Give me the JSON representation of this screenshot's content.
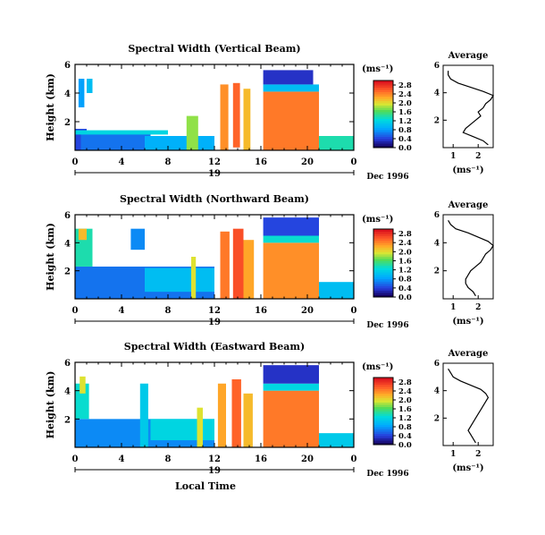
{
  "chart_data": [
    {
      "type": "heatmap",
      "title": "Spectral Width (Vertical Beam)",
      "ylabel": "Height (km)",
      "x": [
        0,
        4,
        8,
        12,
        16,
        20,
        24
      ],
      "x_ticklabels": [
        "0",
        "4",
        "8",
        "12",
        "16",
        "20",
        "0"
      ],
      "ylim": [
        0,
        6
      ],
      "y_ticklabels": [
        "2",
        "4",
        "6"
      ],
      "date_day": "19",
      "date_label": "Dec 1996",
      "colorbar": {
        "unit": "(ms⁻¹)",
        "ticks": [
          "0.0",
          "0.4",
          "0.8",
          "1.2",
          "1.6",
          "2.0",
          "2.4",
          "2.8"
        ],
        "range": [
          0,
          3.0
        ]
      },
      "patches": [
        {
          "x": [
            0.0,
            1.0
          ],
          "y": [
            0.0,
            1.5
          ],
          "value": 0.4
        },
        {
          "x": [
            0.5,
            6.5
          ],
          "y": [
            0.0,
            1.2
          ],
          "value": 0.6
        },
        {
          "x": [
            6.0,
            12.0
          ],
          "y": [
            0.0,
            1.0
          ],
          "value": 0.9
        },
        {
          "x": [
            0.0,
            8.0
          ],
          "y": [
            1.1,
            1.4
          ],
          "value": 1.2
        },
        {
          "x": [
            9.6,
            10.6
          ],
          "y": [
            0.0,
            2.4
          ],
          "value": 1.8
        },
        {
          "x": [
            12.5,
            13.2
          ],
          "y": [
            0.0,
            4.6
          ],
          "value": 2.4
        },
        {
          "x": [
            13.6,
            14.2
          ],
          "y": [
            0.2,
            4.7
          ],
          "value": 2.6
        },
        {
          "x": [
            14.5,
            15.1
          ],
          "y": [
            0.0,
            4.3
          ],
          "value": 2.2
        },
        {
          "x": [
            16.2,
            21.0
          ],
          "y": [
            0.0,
            4.1
          ],
          "value": 2.5
        },
        {
          "x": [
            16.2,
            21.0
          ],
          "y": [
            4.1,
            4.6
          ],
          "value": 1.0
        },
        {
          "x": [
            16.2,
            20.5
          ],
          "y": [
            4.6,
            5.6
          ],
          "value": 0.3
        },
        {
          "x": [
            21.0,
            24.0
          ],
          "y": [
            0.0,
            1.0
          ],
          "value": 1.4
        },
        {
          "x": [
            0.3,
            0.8
          ],
          "y": [
            3.0,
            5.0
          ],
          "value": 0.8
        },
        {
          "x": [
            1.0,
            1.5
          ],
          "y": [
            4.0,
            5.0
          ],
          "value": 1.0
        }
      ],
      "average": {
        "title": "Average",
        "xlabel": "(ms⁻¹)",
        "xlim": [
          0.6,
          2.6
        ],
        "x_ticks": [
          1,
          2
        ],
        "ylim": [
          0,
          6
        ],
        "y_ticks": [
          2,
          4,
          6
        ],
        "profile_heights": [
          0.2,
          0.5,
          0.8,
          1.1,
          1.4,
          1.7,
          2.0,
          2.3,
          2.6,
          2.9,
          3.2,
          3.5,
          3.8,
          4.1,
          4.4,
          4.7,
          5.0,
          5.3,
          5.6
        ],
        "profile_values": [
          2.4,
          2.2,
          1.8,
          1.4,
          1.5,
          1.7,
          1.9,
          2.1,
          2.0,
          2.2,
          2.3,
          2.5,
          2.6,
          2.2,
          1.7,
          1.2,
          0.9,
          0.8,
          0.8
        ]
      }
    },
    {
      "type": "heatmap",
      "title": "Spectral Width (Northward Beam)",
      "ylabel": "Height (km)",
      "x": [
        0,
        4,
        8,
        12,
        16,
        20,
        24
      ],
      "x_ticklabels": [
        "0",
        "4",
        "8",
        "12",
        "16",
        "20",
        "0"
      ],
      "ylim": [
        0,
        6
      ],
      "y_ticklabels": [
        "2",
        "4",
        "6"
      ],
      "date_day": "19",
      "date_label": "Dec 1996",
      "colorbar": {
        "unit": "(ms⁻¹)",
        "ticks": [
          "0.0",
          "0.4",
          "0.8",
          "1.2",
          "1.6",
          "2.0",
          "2.4",
          "2.8"
        ],
        "range": [
          0,
          3.0
        ]
      },
      "patches": [
        {
          "x": [
            0.0,
            12.0
          ],
          "y": [
            0.0,
            2.3
          ],
          "value": 0.6
        },
        {
          "x": [
            0.0,
            1.5
          ],
          "y": [
            2.3,
            5.0
          ],
          "value": 1.4
        },
        {
          "x": [
            0.3,
            1.0
          ],
          "y": [
            4.2,
            5.0
          ],
          "value": 2.2
        },
        {
          "x": [
            4.8,
            6.0
          ],
          "y": [
            3.5,
            5.0
          ],
          "value": 0.7
        },
        {
          "x": [
            6.0,
            12.0
          ],
          "y": [
            0.5,
            2.2
          ],
          "value": 1.0
        },
        {
          "x": [
            10.0,
            10.4
          ],
          "y": [
            0.0,
            3.0
          ],
          "value": 2.0
        },
        {
          "x": [
            12.5,
            13.3
          ],
          "y": [
            0.0,
            4.8
          ],
          "value": 2.5
        },
        {
          "x": [
            13.6,
            14.5
          ],
          "y": [
            0.0,
            5.0
          ],
          "value": 2.7
        },
        {
          "x": [
            14.5,
            15.4
          ],
          "y": [
            0.0,
            4.2
          ],
          "value": 2.3
        },
        {
          "x": [
            16.2,
            21.0
          ],
          "y": [
            0.0,
            4.0
          ],
          "value": 2.4
        },
        {
          "x": [
            16.2,
            21.0
          ],
          "y": [
            4.0,
            4.5
          ],
          "value": 1.3
        },
        {
          "x": [
            16.2,
            21.0
          ],
          "y": [
            4.5,
            5.8
          ],
          "value": 0.4
        },
        {
          "x": [
            21.0,
            24.0
          ],
          "y": [
            0.0,
            1.2
          ],
          "value": 1.0
        }
      ],
      "average": {
        "title": "Average",
        "xlabel": "(ms⁻¹)",
        "xlim": [
          0.6,
          2.6
        ],
        "x_ticks": [
          1,
          2
        ],
        "ylim": [
          0,
          6
        ],
        "y_ticks": [
          2,
          4,
          6
        ],
        "profile_heights": [
          0.2,
          0.5,
          0.8,
          1.1,
          1.4,
          1.7,
          2.0,
          2.3,
          2.6,
          2.9,
          3.2,
          3.5,
          3.8,
          4.1,
          4.4,
          4.7,
          5.0,
          5.3,
          5.6
        ],
        "profile_values": [
          1.9,
          1.8,
          1.6,
          1.5,
          1.5,
          1.6,
          1.7,
          1.9,
          2.1,
          2.2,
          2.3,
          2.5,
          2.6,
          2.4,
          2.0,
          1.6,
          1.1,
          0.9,
          0.8
        ]
      }
    },
    {
      "type": "heatmap",
      "title": "Spectral Width (Eastward Beam)",
      "ylabel": "Height (km)",
      "x": [
        0,
        4,
        8,
        12,
        16,
        20,
        24
      ],
      "x_ticklabels": [
        "0",
        "4",
        "8",
        "12",
        "16",
        "20",
        "0"
      ],
      "ylim": [
        0,
        6
      ],
      "y_ticklabels": [
        "2",
        "4",
        "6"
      ],
      "date_day": "19",
      "date_label": "Dec 1996",
      "xlabel": "Local Time",
      "colorbar": {
        "unit": "(ms⁻¹)",
        "ticks": [
          "0.0",
          "0.4",
          "0.8",
          "1.2",
          "1.6",
          "2.0",
          "2.4",
          "2.8"
        ],
        "range": [
          0,
          3.0
        ]
      },
      "patches": [
        {
          "x": [
            0.0,
            12.0
          ],
          "y": [
            0.0,
            2.0
          ],
          "value": 0.7
        },
        {
          "x": [
            0.0,
            1.2
          ],
          "y": [
            2.0,
            4.5
          ],
          "value": 1.3
        },
        {
          "x": [
            0.4,
            0.9
          ],
          "y": [
            3.8,
            5.0
          ],
          "value": 2.0
        },
        {
          "x": [
            5.6,
            6.3
          ],
          "y": [
            0.0,
            4.5
          ],
          "value": 1.1
        },
        {
          "x": [
            6.5,
            12.0
          ],
          "y": [
            0.5,
            2.0
          ],
          "value": 1.2
        },
        {
          "x": [
            10.5,
            11.0
          ],
          "y": [
            0.0,
            2.8
          ],
          "value": 2.0
        },
        {
          "x": [
            12.3,
            13.0
          ],
          "y": [
            0.0,
            4.5
          ],
          "value": 2.3
        },
        {
          "x": [
            13.5,
            14.3
          ],
          "y": [
            0.0,
            4.8
          ],
          "value": 2.6
        },
        {
          "x": [
            14.5,
            15.3
          ],
          "y": [
            0.0,
            3.8
          ],
          "value": 2.2
        },
        {
          "x": [
            16.2,
            21.0
          ],
          "y": [
            0.0,
            4.0
          ],
          "value": 2.5
        },
        {
          "x": [
            16.2,
            21.0
          ],
          "y": [
            4.0,
            4.5
          ],
          "value": 1.2
        },
        {
          "x": [
            16.2,
            21.0
          ],
          "y": [
            4.5,
            5.8
          ],
          "value": 0.3
        },
        {
          "x": [
            21.0,
            24.0
          ],
          "y": [
            0.0,
            1.0
          ],
          "value": 1.1
        }
      ],
      "average": {
        "title": "Average",
        "xlabel": "(ms⁻¹)",
        "xlim": [
          0.6,
          2.6
        ],
        "x_ticks": [
          1,
          2
        ],
        "ylim": [
          0,
          6
        ],
        "y_ticks": [
          2,
          4,
          6
        ],
        "profile_heights": [
          0.2,
          0.5,
          0.8,
          1.1,
          1.4,
          1.7,
          2.0,
          2.3,
          2.6,
          2.9,
          3.2,
          3.5,
          3.8,
          4.1,
          4.4,
          4.7,
          5.0,
          5.3,
          5.6
        ],
        "profile_values": [
          1.9,
          1.8,
          1.7,
          1.6,
          1.7,
          1.8,
          1.9,
          2.0,
          2.1,
          2.2,
          2.3,
          2.4,
          2.3,
          2.1,
          1.7,
          1.3,
          1.0,
          0.9,
          0.8
        ]
      }
    }
  ]
}
